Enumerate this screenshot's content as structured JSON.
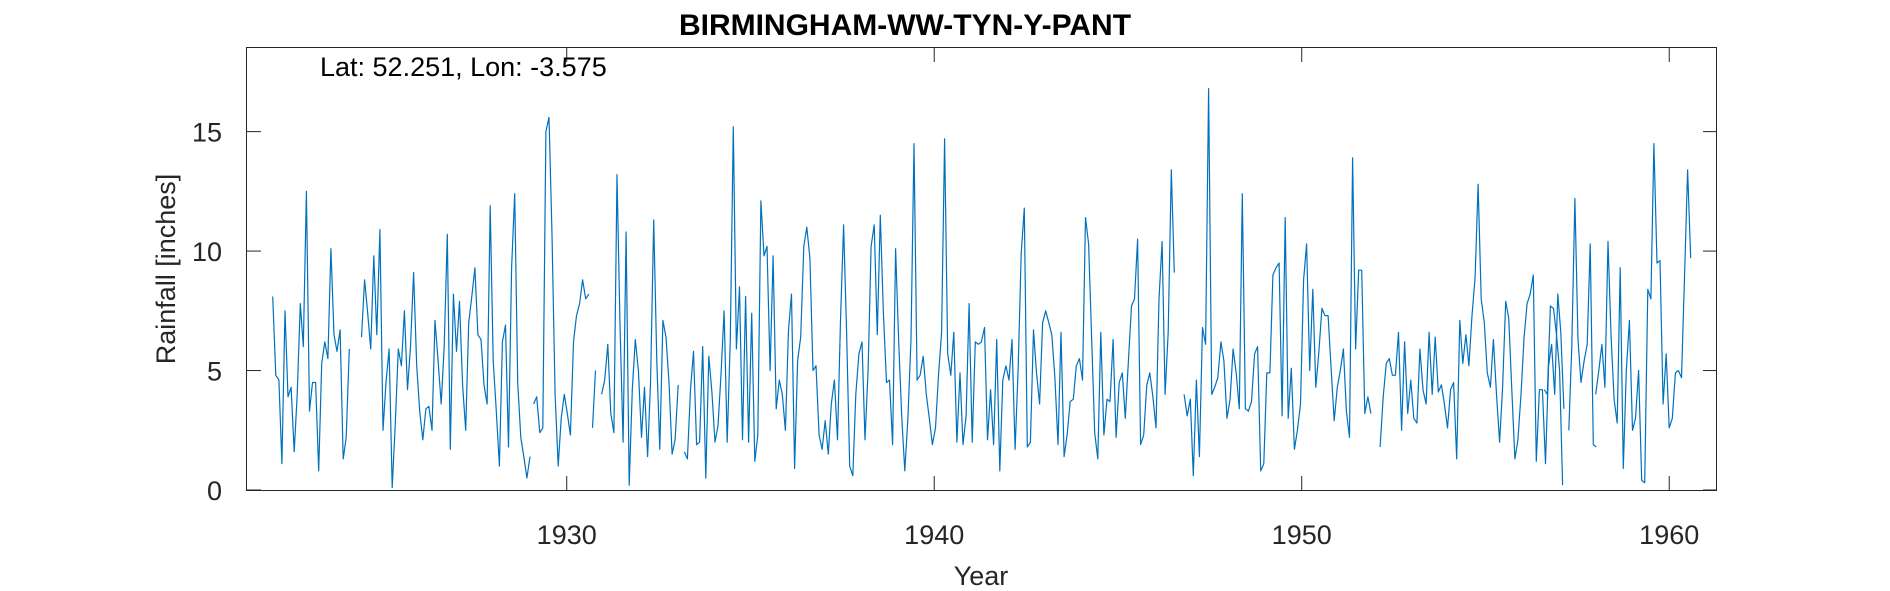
{
  "chart_data": {
    "type": "line",
    "title": "BIRMINGHAM-WW-TYN-Y-PANT",
    "annotation": "Lat: 52.251, Lon: -3.575",
    "xlabel": "Year",
    "ylabel": "Rainfall [inches]",
    "xlim": [
      1921.3,
      1961.3
    ],
    "ylim": [
      0,
      18.5
    ],
    "xticks": [
      1930,
      1940,
      1950,
      1960
    ],
    "yticks": [
      0,
      5,
      10,
      15
    ],
    "grid": false,
    "series": [
      {
        "color": "#0072BD",
        "segments": [
          {
            "start_year": 1922.0,
            "values": [
              8.1,
              4.8,
              4.6,
              1.1,
              7.5,
              3.9,
              4.3,
              1.6,
              4.0,
              7.8,
              6.0,
              12.5,
              3.3,
              4.5,
              4.5,
              0.8,
              5.3,
              6.2,
              5.5,
              10.1,
              6.5,
              5.8,
              6.7,
              1.3,
              2.2,
              5.9,
              null,
              null,
              null,
              6.4,
              8.8,
              7.4,
              5.9,
              9.8,
              6.5,
              10.9,
              2.5,
              4.5,
              5.9,
              0.1,
              2.7,
              5.9,
              5.2,
              7.5,
              4.2,
              6.0,
              9.1,
              5.2,
              3.3,
              2.1,
              3.4,
              3.5,
              2.5,
              7.1,
              5.4,
              3.6,
              6.0,
              10.7,
              1.7,
              8.2,
              5.8,
              7.9,
              4.4,
              2.5,
              7.0,
              8.1,
              9.3,
              6.5,
              6.3,
              4.4,
              3.6,
              11.9,
              5.4,
              3.3,
              1.0,
              6.2,
              6.9,
              1.8,
              9.3,
              12.4,
              4.5,
              2.2,
              1.4,
              0.5,
              1.4
            ]
          },
          {
            "start_year": 1929.1,
            "values": [
              3.6,
              3.9,
              2.4,
              2.6,
              15.0,
              15.6,
              10.7,
              4.0,
              1.0,
              3.0,
              4.0,
              3.2,
              2.3,
              6.2,
              7.3,
              7.8,
              8.8,
              8.0,
              8.2
            ]
          },
          {
            "start_year": 1930.7,
            "values": [
              2.6,
              5.0,
              null,
              4.0,
              4.6,
              6.1,
              3.2,
              2.4,
              13.2,
              6.9,
              2.0,
              10.8,
              0.2,
              4.2,
              6.3,
              5.0,
              2.2,
              4.3,
              1.4,
              4.6,
              11.3,
              5.4,
              1.7,
              7.1,
              6.4,
              4.5,
              1.5,
              2.1,
              4.4
            ]
          },
          {
            "start_year": 1933.2,
            "values": [
              1.6,
              1.3,
              4.2,
              5.8,
              1.9,
              2.0,
              6.0,
              0.5,
              5.6,
              4.1,
              2.0,
              2.7,
              4.9,
              7.5,
              2.0,
              6.3,
              15.2,
              5.9,
              8.5,
              2.1,
              8.1,
              2.0,
              7.4,
              1.2,
              2.3,
              12.1,
              9.8,
              10.2,
              5.0,
              9.8,
              3.4,
              4.6,
              4.0,
              2.5,
              6.7,
              8.2,
              0.9,
              5.4,
              6.4,
              10.2,
              11.0,
              9.7,
              5.0,
              5.2,
              2.3,
              1.7,
              2.9,
              1.5,
              3.6,
              4.6,
              2.1,
              7.1,
              11.1,
              6.6,
              1.0,
              0.6,
              4.0,
              5.7,
              6.2,
              2.1,
              5.0,
              10.2,
              11.1,
              6.5,
              11.5,
              7.4,
              4.5,
              4.6,
              1.9,
              10.1,
              6.2,
              3.0,
              0.8,
              3.0,
              6.3,
              14.5,
              4.6,
              4.8,
              5.6,
              4.0,
              3.0,
              1.9,
              2.6,
              4.8,
              6.6,
              14.7,
              5.7,
              4.8,
              6.6,
              2.0,
              4.9,
              1.9,
              3.1,
              7.8,
              2.0,
              6.2,
              6.1,
              6.2,
              6.8,
              2.1,
              4.2,
              1.9,
              6.3,
              0.8,
              4.6,
              5.2,
              4.6,
              6.3,
              1.7,
              5.0,
              9.9,
              11.8,
              1.8,
              2.0,
              6.7,
              4.9,
              3.6,
              7.0,
              7.5,
              7.0,
              6.5,
              4.7,
              1.9,
              6.6,
              1.4,
              2.3,
              3.7,
              3.8,
              5.2,
              5.5,
              4.6,
              11.4,
              10.3,
              6.4,
              2.4,
              1.3,
              6.6,
              2.3,
              3.8,
              3.7,
              6.3,
              2.2,
              4.5,
              4.9,
              3.0,
              5.4,
              7.7,
              8.0,
              10.5,
              1.9,
              2.3,
              4.4,
              4.9,
              3.9,
              2.6,
              8.0,
              10.4,
              4.0,
              6.6,
              13.4,
              9.1
            ]
          },
          {
            "start_year": 1946.8,
            "values": [
              4.0,
              3.1,
              3.8,
              0.6,
              4.6,
              1.4,
              6.8,
              6.1,
              16.8,
              4.0,
              4.3,
              4.7,
              6.2,
              5.4,
              3.0,
              3.8,
              5.9,
              4.9,
              3.4,
              12.4,
              3.4,
              3.3,
              3.7,
              5.7,
              6.0,
              0.8,
              1.1,
              4.9,
              4.9,
              9.0,
              9.3,
              9.5,
              3.1,
              11.4,
              3.0,
              5.1,
              1.7,
              2.5,
              3.6,
              8.8,
              10.3,
              5.0,
              8.4,
              4.3,
              5.8,
              7.6,
              7.3,
              7.3,
              5.1,
              2.9,
              4.3,
              5.0,
              5.9,
              3.3,
              2.2,
              13.9,
              5.9,
              9.2,
              9.2,
              3.2,
              3.9,
              3.2,
              null,
              null,
              1.8,
              3.9,
              5.3,
              5.5,
              4.8,
              4.8,
              6.6,
              2.5,
              6.2,
              3.2,
              4.6,
              3.0,
              2.8,
              5.9,
              4.2,
              3.6,
              6.6,
              4.0,
              6.4,
              4.1,
              4.4,
              3.6,
              2.6,
              4.2,
              4.5,
              1.3,
              7.1,
              5.3,
              6.5,
              5.2,
              7.3,
              8.9,
              12.8,
              8.0,
              7.0,
              4.9,
              4.3,
              6.3,
              4.0,
              2.0,
              4.3,
              7.9,
              7.2,
              4.2,
              1.3,
              2.1,
              4.0,
              6.4,
              7.8,
              8.2,
              9.0,
              1.2,
              4.2,
              4.2,
              1.1,
              5.2,
              6.1,
              4.0,
              8.2,
              6.6,
              3.4
            ]
          },
          {
            "start_year": 1956.6,
            "values": [
              4.2,
              4.0,
              7.7,
              7.6,
              6.5,
              5.0,
              0.2,
              null,
              2.5,
              6.0,
              12.2,
              6.3,
              4.5,
              5.4,
              6.1,
              10.3,
              1.9,
              1.8
            ]
          },
          {
            "start_year": 1958.0,
            "values": [
              4.0,
              5.0,
              6.1,
              4.3,
              10.4,
              6.5,
              3.8,
              2.8,
              9.3,
              0.9,
              5.0,
              7.1,
              2.5,
              3.0,
              5.0,
              0.4,
              0.3,
              8.4,
              8.0,
              14.5,
              9.5,
              9.6,
              3.6,
              5.7,
              2.6,
              3.0,
              4.9,
              5.0,
              4.7,
              8.9,
              13.4,
              9.7
            ]
          }
        ]
      }
    ]
  }
}
